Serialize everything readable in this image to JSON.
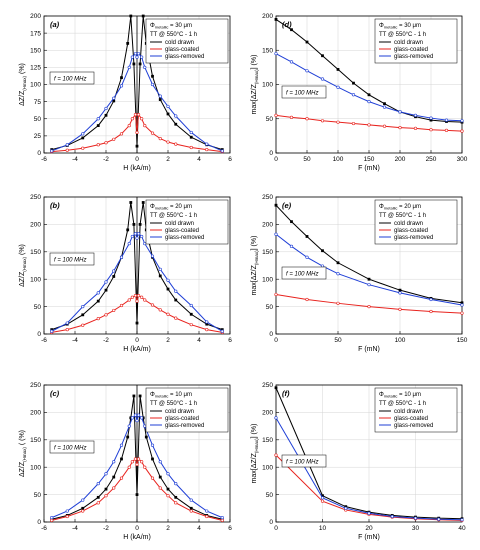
{
  "colors": {
    "cold_drawn": "#000000",
    "glass_coated": "#e8231e",
    "glass_removed": "#1f3fd6",
    "grid": "#d4d4d4"
  },
  "legend": {
    "series": [
      "cold drawn",
      "glass-coated",
      "glass-removed"
    ],
    "tt": "TT @ 550°C - 1 h",
    "phi": "Φ",
    "phi_sub": "metallic"
  },
  "chart_data": [
    {
      "id": "a",
      "type": "line",
      "label": "(a)",
      "diam": "= 30 μm",
      "freq": "f = 100 MHz",
      "xlabel": "H (kA/m)",
      "ylabel_main": "ΔZ/Z",
      "ylabel_sub": "(Hmax)",
      "ylabel_tail": " (%)",
      "xlim": [
        -6,
        6
      ],
      "ylim": [
        0,
        200
      ],
      "xticks": [
        -6,
        -4,
        -2,
        0,
        2,
        4,
        6
      ],
      "yticks": [
        0,
        25,
        50,
        75,
        100,
        125,
        150,
        175,
        200
      ],
      "series": [
        {
          "name": "cold drawn",
          "x": [
            -5.5,
            -4.5,
            -3.5,
            -2.5,
            -2,
            -1.5,
            -1,
            -0.6,
            -0.4,
            -0.2,
            0,
            0.2,
            0.4,
            0.6,
            1,
            1.5,
            2,
            2.5,
            3.5,
            4.5,
            5.5
          ],
          "y": [
            5,
            11,
            22,
            40,
            55,
            76,
            110,
            160,
            200,
            130,
            10,
            130,
            200,
            160,
            112,
            78,
            57,
            42,
            23,
            12,
            5
          ]
        },
        {
          "name": "glass-coated",
          "x": [
            -5.5,
            -4.5,
            -3.5,
            -2.5,
            -2,
            -1.5,
            -1,
            -0.5,
            -0.3,
            -0.1,
            0,
            0.1,
            0.3,
            0.5,
            1,
            1.5,
            2,
            2.5,
            3.5,
            4.5,
            5.5
          ],
          "y": [
            2,
            4,
            7,
            12,
            15,
            20,
            28,
            40,
            50,
            56,
            30,
            56,
            50,
            40,
            29,
            21,
            16,
            13,
            8,
            5,
            2
          ]
        },
        {
          "name": "glass-removed",
          "x": [
            -5.5,
            -4.5,
            -3.5,
            -2.5,
            -2,
            -1.5,
            -1,
            -0.5,
            -0.3,
            -0.1,
            0,
            0.1,
            0.3,
            0.5,
            1,
            1.5,
            2,
            2.5,
            3.5,
            4.5,
            5.5
          ],
          "y": [
            3,
            12,
            28,
            50,
            65,
            80,
            98,
            125,
            140,
            145,
            140,
            145,
            140,
            125,
            100,
            83,
            68,
            54,
            30,
            13,
            3
          ]
        }
      ]
    },
    {
      "id": "d",
      "type": "line",
      "label": "(d)",
      "diam": "= 30 μm",
      "freq": "f = 100 MHz",
      "xlabel": "F (mN)",
      "ylabel_main": "max[ΔZ/Z",
      "ylabel_sub": "(Hmax)",
      "ylabel_tail": "] (%)",
      "xlim": [
        0,
        300
      ],
      "ylim": [
        0,
        200
      ],
      "xticks": [
        0,
        50,
        100,
        150,
        200,
        250,
        300
      ],
      "yticks": [
        0,
        50,
        100,
        150,
        200
      ],
      "series": [
        {
          "name": "cold drawn",
          "x": [
            0,
            25,
            50,
            75,
            100,
            125,
            150,
            175,
            200,
            225,
            250,
            275,
            300
          ],
          "y": [
            195,
            180,
            162,
            142,
            122,
            102,
            85,
            72,
            60,
            53,
            48,
            46,
            45
          ]
        },
        {
          "name": "glass-coated",
          "x": [
            0,
            25,
            50,
            75,
            100,
            125,
            150,
            175,
            200,
            225,
            250,
            275,
            300
          ],
          "y": [
            55,
            52,
            50,
            47,
            45,
            43,
            41,
            39,
            37,
            36,
            34,
            33,
            32
          ]
        },
        {
          "name": "glass-removed",
          "x": [
            0,
            25,
            50,
            75,
            100,
            125,
            150,
            175,
            200,
            225,
            250,
            275,
            300
          ],
          "y": [
            145,
            133,
            120,
            108,
            96,
            85,
            75,
            67,
            60,
            55,
            51,
            48,
            47
          ]
        }
      ]
    },
    {
      "id": "b",
      "type": "line",
      "label": "(b)",
      "diam": "= 20 μm",
      "freq": "f = 100 MHz",
      "xlabel": "H (kA/m)",
      "ylabel_main": "ΔZ/Z",
      "ylabel_sub": "(Hmax)",
      "ylabel_tail": " (%)",
      "xlim": [
        -6,
        6
      ],
      "ylim": [
        0,
        250
      ],
      "xticks": [
        -6,
        -4,
        -2,
        0,
        2,
        4,
        6
      ],
      "yticks": [
        0,
        50,
        100,
        150,
        200,
        250
      ],
      "series": [
        {
          "name": "cold drawn",
          "x": [
            -5.5,
            -4.5,
            -3.5,
            -2.5,
            -2,
            -1.5,
            -1,
            -0.6,
            -0.4,
            -0.2,
            0,
            0.2,
            0.4,
            0.6,
            1,
            1.5,
            2,
            2.5,
            3.5,
            4.5,
            5.5
          ],
          "y": [
            8,
            18,
            35,
            60,
            80,
            105,
            140,
            190,
            240,
            200,
            20,
            200,
            240,
            190,
            140,
            106,
            82,
            62,
            36,
            18,
            8
          ]
        },
        {
          "name": "glass-coated",
          "x": [
            -5.5,
            -4.5,
            -3.5,
            -2.5,
            -2,
            -1.5,
            -1,
            -0.5,
            -0.3,
            -0.1,
            0,
            0.1,
            0.3,
            0.5,
            1,
            1.5,
            2,
            2.5,
            3.5,
            4.5,
            5.5
          ],
          "y": [
            3,
            8,
            16,
            28,
            35,
            43,
            52,
            62,
            67,
            70,
            60,
            70,
            67,
            62,
            53,
            44,
            36,
            29,
            17,
            8,
            3
          ]
        },
        {
          "name": "glass-removed",
          "x": [
            -5.5,
            -4.5,
            -3.5,
            -2.5,
            -2,
            -1.5,
            -1,
            -0.5,
            -0.3,
            -0.1,
            0,
            0.1,
            0.3,
            0.5,
            1,
            1.5,
            2,
            2.5,
            3.5,
            4.5,
            5.5
          ],
          "y": [
            5,
            20,
            50,
            75,
            95,
            115,
            140,
            165,
            178,
            183,
            175,
            183,
            178,
            165,
            142,
            118,
            98,
            78,
            52,
            22,
            5
          ]
        }
      ]
    },
    {
      "id": "e",
      "type": "line",
      "label": "(e)",
      "diam": "= 20 μm",
      "freq": "f = 100 MHz",
      "xlabel": "F (mN)",
      "ylabel_main": "max[ΔZ/Z",
      "ylabel_sub": "(Hmax)",
      "ylabel_tail": "] (%)",
      "xlim": [
        0,
        150
      ],
      "ylim": [
        0,
        250
      ],
      "xticks": [
        0,
        50,
        100,
        150
      ],
      "yticks": [
        0,
        50,
        100,
        150,
        200,
        250
      ],
      "series": [
        {
          "name": "cold drawn",
          "x": [
            0,
            12.5,
            25,
            37.5,
            50,
            75,
            100,
            125,
            150
          ],
          "y": [
            235,
            205,
            178,
            152,
            130,
            100,
            80,
            65,
            57
          ]
        },
        {
          "name": "glass-coated",
          "x": [
            0,
            25,
            50,
            75,
            100,
            125,
            150
          ],
          "y": [
            72,
            63,
            56,
            50,
            45,
            41,
            38
          ]
        },
        {
          "name": "glass-removed",
          "x": [
            0,
            12.5,
            25,
            37.5,
            50,
            75,
            100,
            125,
            150
          ],
          "y": [
            182,
            160,
            140,
            124,
            110,
            90,
            75,
            63,
            53
          ]
        }
      ]
    },
    {
      "id": "c",
      "type": "line",
      "label": "(c)",
      "diam": "= 10 μm",
      "freq": "f = 100 MHz",
      "xlabel": "H (kA/m)",
      "ylabel_main": "ΔZ/Z",
      "ylabel_sub": "(Hmax)",
      "ylabel_tail": " ( (%)",
      "xlim": [
        -6,
        6
      ],
      "ylim": [
        0,
        250
      ],
      "xticks": [
        -6,
        -4,
        -2,
        0,
        2,
        4,
        6
      ],
      "yticks": [
        0,
        50,
        100,
        150,
        200,
        250
      ],
      "series": [
        {
          "name": "cold drawn",
          "x": [
            -5.5,
            -4.5,
            -3.5,
            -2.5,
            -2,
            -1.5,
            -1,
            -0.6,
            -0.4,
            -0.2,
            0,
            0.2,
            0.4,
            0.6,
            1,
            1.5,
            2,
            2.5,
            3.5,
            4.5,
            5.5
          ],
          "y": [
            5,
            12,
            25,
            45,
            60,
            82,
            115,
            155,
            190,
            230,
            50,
            230,
            190,
            155,
            115,
            82,
            60,
            45,
            25,
            12,
            5
          ]
        },
        {
          "name": "glass-coated",
          "x": [
            -5.5,
            -4.5,
            -3.5,
            -2.5,
            -2,
            -1.5,
            -1,
            -0.5,
            -0.3,
            -0.1,
            0,
            0.1,
            0.3,
            0.5,
            1,
            1.5,
            2,
            2.5,
            3.5,
            4.5,
            5.5
          ],
          "y": [
            3,
            10,
            20,
            35,
            48,
            62,
            80,
            100,
            110,
            115,
            105,
            115,
            110,
            100,
            80,
            62,
            48,
            35,
            20,
            10,
            3
          ]
        },
        {
          "name": "glass-removed",
          "x": [
            -5.5,
            -4.5,
            -3.5,
            -2.5,
            -2,
            -1.5,
            -1,
            -0.5,
            -0.3,
            -0.1,
            0,
            0.1,
            0.3,
            0.5,
            1,
            1.5,
            2,
            2.5,
            3.5,
            4.5,
            5.5
          ],
          "y": [
            8,
            20,
            40,
            70,
            88,
            110,
            140,
            175,
            190,
            195,
            185,
            195,
            190,
            175,
            140,
            110,
            88,
            70,
            40,
            20,
            8
          ]
        }
      ]
    },
    {
      "id": "f",
      "type": "line",
      "label": "(f)",
      "diam": "= 10 μm",
      "freq": "f = 100 MHz",
      "xlabel": "F (mN)",
      "ylabel_main": "max[ΔZ/Z",
      "ylabel_sub": "(Hmax)",
      "ylabel_tail": "] (%)",
      "xlim": [
        0,
        40
      ],
      "ylim": [
        0,
        250
      ],
      "xticks": [
        0,
        10,
        20,
        30,
        40
      ],
      "yticks": [
        0,
        50,
        100,
        150,
        200,
        250
      ],
      "series": [
        {
          "name": "cold drawn",
          "x": [
            0,
            10,
            15,
            20,
            25,
            30,
            35,
            40
          ],
          "y": [
            245,
            48,
            28,
            18,
            12,
            9,
            7,
            6
          ]
        },
        {
          "name": "glass-coated",
          "x": [
            0,
            10,
            15,
            20,
            25,
            30,
            35,
            40
          ],
          "y": [
            122,
            38,
            22,
            14,
            9,
            6,
            4,
            3
          ]
        },
        {
          "name": "glass-removed",
          "x": [
            0,
            10,
            15,
            20,
            25,
            30,
            35,
            40
          ],
          "y": [
            190,
            44,
            25,
            16,
            10,
            7,
            5,
            4
          ]
        }
      ]
    }
  ]
}
